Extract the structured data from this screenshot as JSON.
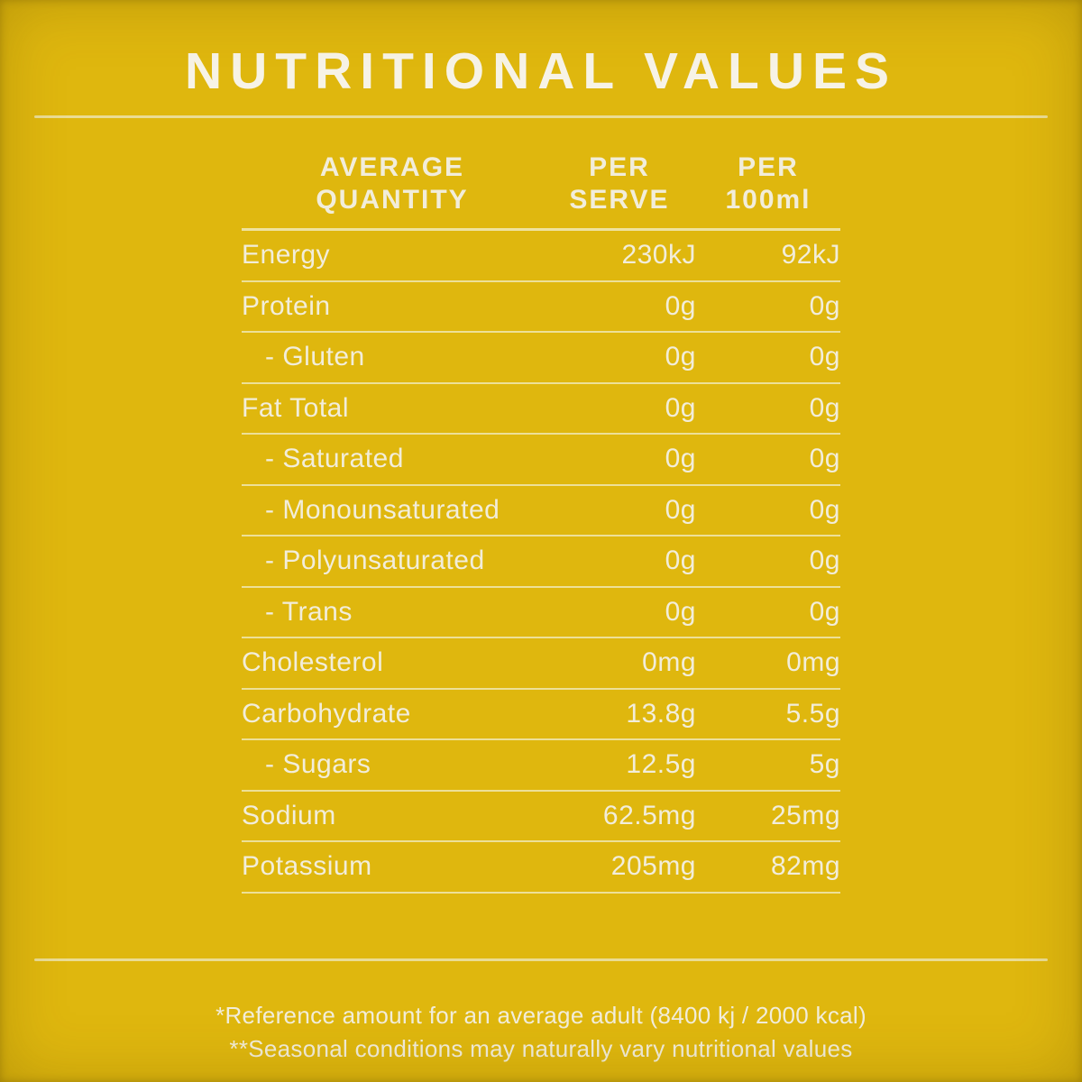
{
  "title": "NUTRITIONAL VALUES",
  "colors": {
    "background": "#dfb70e",
    "text": "#f2edda",
    "divider": "#ece3ab"
  },
  "table": {
    "headers": {
      "quantity_line1": "AVERAGE",
      "quantity_line2": "QUANTITY",
      "serve_line1": "PER",
      "serve_line2": "SERVE",
      "per100_line1": "PER",
      "per100_line2": "100ml"
    },
    "rows": [
      {
        "label": "Energy",
        "per_serve": "230kJ",
        "per_100ml": "92kJ"
      },
      {
        "label": "Protein",
        "per_serve": "0g",
        "per_100ml": "0g"
      },
      {
        "label": "- Gluten",
        "per_serve": "0g",
        "per_100ml": "0g"
      },
      {
        "label": "Fat Total",
        "per_serve": "0g",
        "per_100ml": "0g"
      },
      {
        "label": "- Saturated",
        "per_serve": "0g",
        "per_100ml": "0g"
      },
      {
        "label": "- Monounsaturated",
        "per_serve": "0g",
        "per_100ml": "0g"
      },
      {
        "label": "- Polyunsaturated",
        "per_serve": "0g",
        "per_100ml": "0g"
      },
      {
        "label": "- Trans",
        "per_serve": "0g",
        "per_100ml": "0g"
      },
      {
        "label": "Cholesterol",
        "per_serve": "0mg",
        "per_100ml": "0mg"
      },
      {
        "label": "Carbohydrate",
        "per_serve": "13.8g",
        "per_100ml": "5.5g"
      },
      {
        "label": "- Sugars",
        "per_serve": "12.5g",
        "per_100ml": "5g"
      },
      {
        "label": "Sodium",
        "per_serve": "62.5mg",
        "per_100ml": "25mg"
      },
      {
        "label": "Potassium",
        "per_serve": "205mg",
        "per_100ml": "82mg"
      }
    ]
  },
  "footnotes": {
    "line1": "*Reference amount for an average adult (8400 kj / 2000 kcal)",
    "line2": "**Seasonal conditions may naturally vary nutritional values"
  }
}
